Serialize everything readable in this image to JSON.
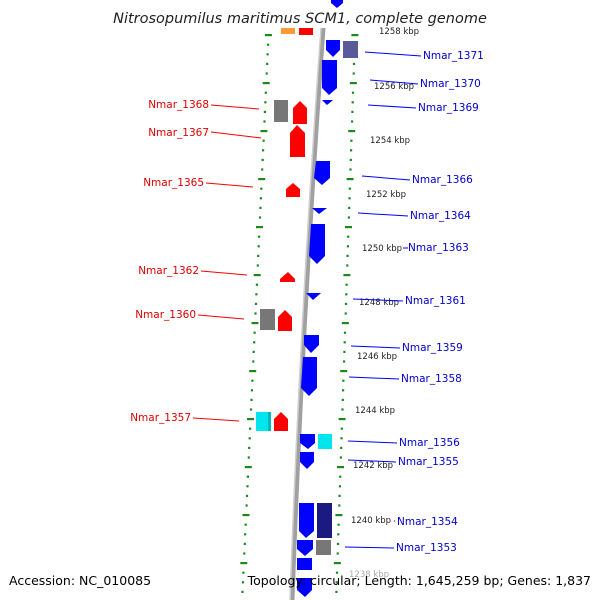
{
  "title": "Nitrosopumilus maritimus SCM1, complete genome",
  "footer": {
    "accession": "Accession: NC_010085",
    "summary": "Topology: circular; Length: 1,645,259 bp; Genes: 1,837"
  },
  "colors": {
    "forward_gene": "#ff0000",
    "reverse_gene": "#0000ff",
    "grey_feature": "#777777",
    "cyan_feature": "#00e5ee",
    "dark_feature": "#1a1a80",
    "slate_feature": "#5a5a9a",
    "orange_feature": "#ff9933",
    "tick_green": "#1a8a1a",
    "backbone": "#999999"
  },
  "scale_labels": [
    "1258 kbp",
    "1256 kbp",
    "1254 kbp",
    "1252 kbp",
    "1250 kbp",
    "1248 kbp",
    "1246 kbp",
    "1244 kbp",
    "1242 kbp",
    "1240 kbp",
    "1238 kbp"
  ],
  "labels_left": [
    "Nmar_1368",
    "Nmar_1367",
    "Nmar_1365",
    "Nmar_1362",
    "Nmar_1360",
    "Nmar_1357"
  ],
  "labels_right": [
    "Nmar_1371",
    "Nmar_1370",
    "Nmar_1369",
    "Nmar_1366",
    "Nmar_1364",
    "Nmar_1363",
    "Nmar_1361",
    "Nmar_1359",
    "Nmar_1358",
    "Nmar_1356",
    "Nmar_1355",
    "Nmar_1354",
    "Nmar_1353"
  ]
}
